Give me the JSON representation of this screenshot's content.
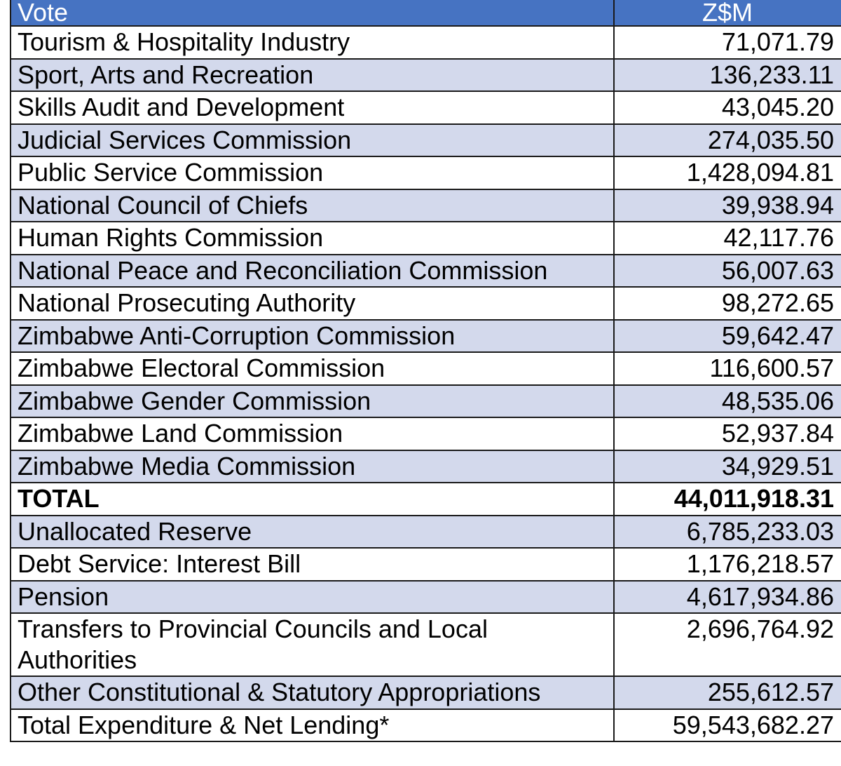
{
  "table": {
    "headers": {
      "vote": "Vote",
      "amount": "Z$M"
    },
    "rows": [
      {
        "vote": "Tourism & Hospitality Industry",
        "amount": "71,071.79",
        "bold": false
      },
      {
        "vote": "Sport, Arts and Recreation",
        "amount": "136,233.11",
        "bold": false
      },
      {
        "vote": "Skills Audit and Development",
        "amount": "43,045.20",
        "bold": false
      },
      {
        "vote": "Judicial Services Commission",
        "amount": "274,035.50",
        "bold": false
      },
      {
        "vote": "Public Service Commission",
        "amount": "1,428,094.81",
        "bold": false
      },
      {
        "vote": "National Council of Chiefs",
        "amount": "39,938.94",
        "bold": false
      },
      {
        "vote": "Human Rights Commission",
        "amount": "42,117.76",
        "bold": false
      },
      {
        "vote": "National Peace and Reconciliation Commission",
        "amount": "56,007.63",
        "bold": false
      },
      {
        "vote": "National Prosecuting Authority",
        "amount": "98,272.65",
        "bold": false
      },
      {
        "vote": "Zimbabwe Anti-Corruption Commission",
        "amount": "59,642.47",
        "bold": false
      },
      {
        "vote": "Zimbabwe Electoral Commission",
        "amount": "116,600.57",
        "bold": false
      },
      {
        "vote": "Zimbabwe Gender Commission",
        "amount": "48,535.06",
        "bold": false
      },
      {
        "vote": "Zimbabwe Land Commission",
        "amount": "52,937.84",
        "bold": false
      },
      {
        "vote": "Zimbabwe Media Commission",
        "amount": "34,929.51",
        "bold": false
      },
      {
        "vote": "TOTAL",
        "amount": "44,011,918.31",
        "bold": true
      },
      {
        "vote": "Unallocated Reserve",
        "amount": "6,785,233.03",
        "bold": false
      },
      {
        "vote": "Debt Service: Interest Bill",
        "amount": "1,176,218.57",
        "bold": false
      },
      {
        "vote": "Pension",
        "amount": "4,617,934.86",
        "bold": false
      },
      {
        "vote": "Transfers to Provincial Councils and Local Authorities",
        "amount": "2,696,764.92",
        "bold": false
      },
      {
        "vote": "Other Constitutional & Statutory Appropriations",
        "amount": "255,612.57",
        "bold": false
      },
      {
        "vote": "Total Expenditure & Net Lending*",
        "amount": "59,543,682.27",
        "bold": false
      }
    ]
  },
  "colors": {
    "header_bg": "#4673c2",
    "alt_row_bg": "#d3d9ec",
    "plain_row_bg": "#ffffff",
    "border": "#1a1a1a"
  }
}
